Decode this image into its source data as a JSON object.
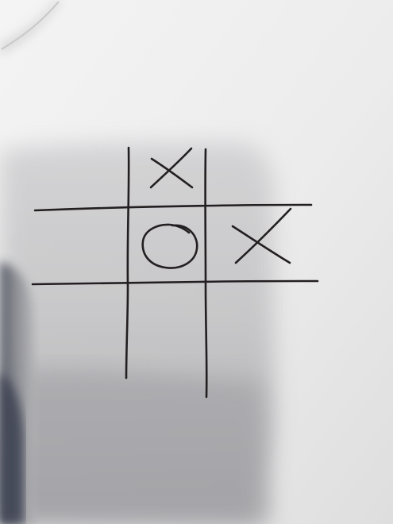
{
  "game": {
    "name": "tic-tac-toe",
    "board": [
      [
        "",
        "X",
        ""
      ],
      [
        "",
        "O",
        "X"
      ],
      [
        "",
        "",
        ""
      ]
    ]
  },
  "colors": {
    "ink": "#231f20",
    "paper": "#ededed",
    "shadow": "#a9a9ab",
    "table": "#8d8d90"
  }
}
